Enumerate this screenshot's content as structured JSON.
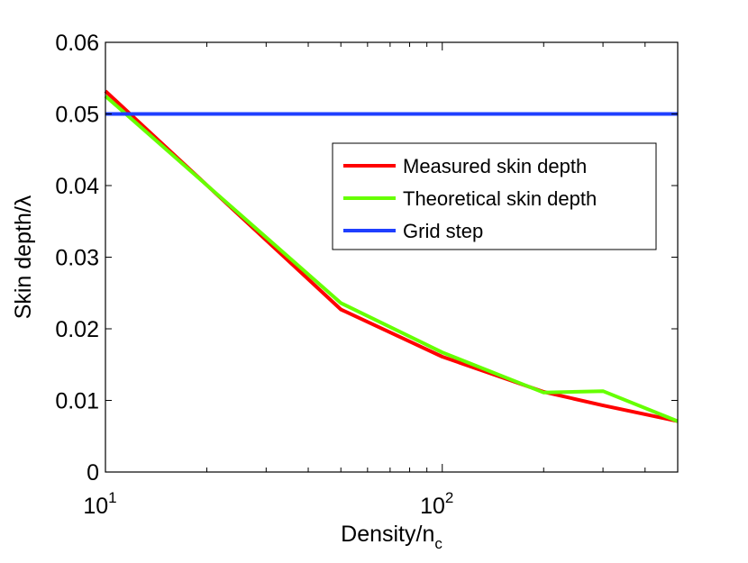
{
  "chart_data": {
    "type": "line",
    "title": "",
    "xlabel": "Density/n",
    "xlabel_sub": "c",
    "ylabel": "Skin depth/λ",
    "xscale": "log",
    "xlim": [
      10,
      500
    ],
    "ylim": [
      0,
      0.06
    ],
    "grid": false,
    "legend_position": "upper-right-inset",
    "y_ticks": [
      {
        "value": 0,
        "label": "0"
      },
      {
        "value": 0.01,
        "label": "0.01"
      },
      {
        "value": 0.02,
        "label": "0.02"
      },
      {
        "value": 0.03,
        "label": "0.03"
      },
      {
        "value": 0.04,
        "label": "0.04"
      },
      {
        "value": 0.05,
        "label": "0.05"
      },
      {
        "value": 0.06,
        "label": "0.06"
      }
    ],
    "x_major_ticks": [
      {
        "value": 10,
        "base": "10",
        "exponent": "1"
      },
      {
        "value": 100,
        "base": "10",
        "exponent": "2"
      }
    ],
    "x_minor_ticks": [
      20,
      30,
      40,
      50,
      60,
      70,
      80,
      90,
      200,
      300,
      400
    ],
    "series": [
      {
        "name": "Measured skin depth",
        "color": "#ff0000",
        "x": [
          10,
          50,
          100,
          200,
          300,
          500
        ],
        "y": [
          0.0532,
          0.0227,
          0.0161,
          0.0112,
          0.0093,
          0.0071
        ]
      },
      {
        "name": "Theoretical skin depth",
        "color": "#66ff00",
        "x": [
          10,
          50,
          100,
          200,
          300,
          500
        ],
        "y": [
          0.0525,
          0.0236,
          0.0167,
          0.0111,
          0.0113,
          0.0071
        ]
      },
      {
        "name": "Grid step",
        "color": "#1f3fff",
        "x": [
          10,
          500
        ],
        "y": [
          0.05,
          0.05
        ]
      }
    ]
  }
}
